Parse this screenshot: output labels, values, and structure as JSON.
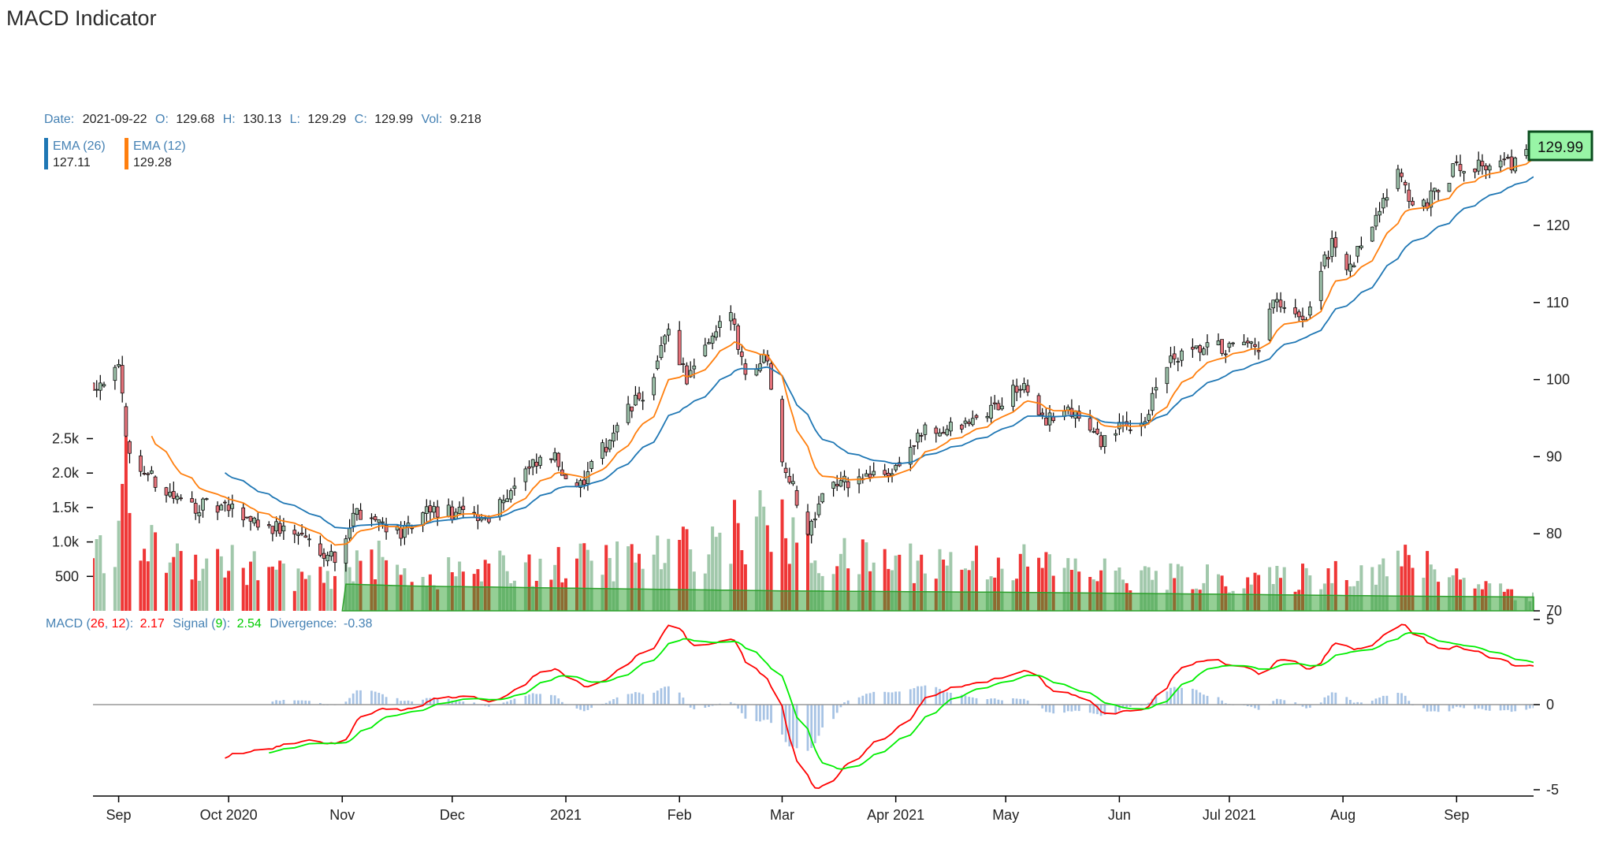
{
  "page_title": "MACD Indicator",
  "colors": {
    "up": "#9bbfa8",
    "down": "#e5727a",
    "ema26": "#1f77b4",
    "ema12": "#ff7f0e",
    "vol_up": "#9cc5a6",
    "vol_down": "#ee2b2b",
    "vol_area": "#2ca02c",
    "macd": "#ff0000",
    "signal": "#00ee00",
    "divergence": "#6c9bd2",
    "label_blue": "#4682b4"
  },
  "tooltip": {
    "date_label": "Date:",
    "date": "2021-09-22",
    "o_label": "O:",
    "open": "129.68",
    "h_label": "H:",
    "high": "130.13",
    "l_label": "L:",
    "low": "129.29",
    "c_label": "C:",
    "close": "129.99",
    "vol_label": "Vol:",
    "volume": "9.218"
  },
  "ema_legend": [
    {
      "name": "EMA (26)",
      "value": "127.11"
    },
    {
      "name": "EMA (12)",
      "value": "129.28"
    }
  ],
  "last_price": "129.99",
  "macd_legend": {
    "macd_label": "MACD (",
    "slow": "26",
    "sep": ", ",
    "fast": "12",
    "macd_end": "):",
    "macd_value": "2.17",
    "signal_label": "Signal (",
    "signal_period": "9",
    "signal_end": "):",
    "signal_value": "2.54",
    "div_label": "Divergence:",
    "div_value": "-0.38"
  },
  "chart_data": {
    "type": "candlestick",
    "date_range": [
      "2020-08-25",
      "2021-09-22"
    ],
    "x_ticks": [
      "Sep",
      "Oct 2020",
      "Nov",
      "Dec",
      "2021",
      "Feb",
      "Mar",
      "Apr 2021",
      "May",
      "Jun",
      "Jul 2021",
      "Aug",
      "Sep"
    ],
    "price_axis": {
      "ticks": [
        "70",
        "80",
        "90",
        "100",
        "110",
        "120"
      ],
      "range": [
        70,
        128
      ]
    },
    "volume_axis": {
      "ticks": [
        "500",
        "1.0k",
        "1.5k",
        "2.0k",
        "2.5k"
      ],
      "range": [
        0,
        5000
      ]
    },
    "macd_axis": {
      "ticks": [
        "5",
        "0",
        "-5"
      ],
      "range": [
        -5,
        5
      ]
    },
    "close_keypoints": [
      [
        "2020-08-25",
        99.5
      ],
      [
        "2020-09-01",
        101
      ],
      [
        "2020-09-04",
        90
      ],
      [
        "2020-09-08",
        88
      ],
      [
        "2020-09-18",
        84
      ],
      [
        "2020-10-02",
        83
      ],
      [
        "2020-10-12",
        81
      ],
      [
        "2020-10-20",
        80
      ],
      [
        "2020-10-30",
        77
      ],
      [
        "2020-11-05",
        83
      ],
      [
        "2020-11-10",
        82
      ],
      [
        "2020-11-18",
        80
      ],
      [
        "2020-11-25",
        83
      ],
      [
        "2020-12-10",
        82
      ],
      [
        "2020-12-21",
        88
      ],
      [
        "2020-12-28",
        90
      ],
      [
        "2021-01-05",
        86
      ],
      [
        "2021-01-15",
        94
      ],
      [
        "2021-01-25",
        100
      ],
      [
        "2021-01-29",
        107
      ],
      [
        "2021-02-03",
        100
      ],
      [
        "2021-02-10",
        105
      ],
      [
        "2021-02-15",
        109
      ],
      [
        "2021-02-19",
        101
      ],
      [
        "2021-02-25",
        103
      ],
      [
        "2021-03-01",
        90
      ],
      [
        "2021-03-04",
        86
      ],
      [
        "2021-03-08",
        80
      ],
      [
        "2021-03-12",
        86
      ],
      [
        "2021-03-22",
        87
      ],
      [
        "2021-03-31",
        88
      ],
      [
        "2021-04-08",
        93
      ],
      [
        "2021-04-20",
        94
      ],
      [
        "2021-04-30",
        97
      ],
      [
        "2021-05-05",
        99
      ],
      [
        "2021-05-12",
        95
      ],
      [
        "2021-05-20",
        96
      ],
      [
        "2021-05-26",
        92
      ],
      [
        "2021-06-03",
        94
      ],
      [
        "2021-06-08",
        95
      ],
      [
        "2021-06-14",
        102
      ],
      [
        "2021-06-25",
        104
      ],
      [
        "2021-07-02",
        104
      ],
      [
        "2021-07-09",
        104
      ],
      [
        "2021-07-13",
        110
      ],
      [
        "2021-07-21",
        107
      ],
      [
        "2021-07-29",
        118
      ],
      [
        "2021-08-03",
        114
      ],
      [
        "2021-08-12",
        124
      ],
      [
        "2021-08-17",
        127
      ],
      [
        "2021-08-20",
        122
      ],
      [
        "2021-08-27",
        124
      ],
      [
        "2021-09-01",
        128
      ],
      [
        "2021-09-10",
        128
      ],
      [
        "2021-09-16",
        128
      ],
      [
        "2021-09-22",
        129.99
      ]
    ],
    "volume_keypoints": [
      [
        "2020-08-25",
        700
      ],
      [
        "2020-09-01",
        950
      ],
      [
        "2020-09-03",
        1800
      ],
      [
        "2020-09-08",
        900
      ],
      [
        "2020-10-01",
        700
      ],
      [
        "2020-10-30",
        400
      ],
      [
        "2020-11-05",
        850
      ],
      [
        "2020-11-20",
        500
      ],
      [
        "2021-01-29",
        800
      ],
      [
        "2021-02-25",
        1300
      ],
      [
        "2021-03-10",
        750
      ],
      [
        "2021-05-05",
        700
      ],
      [
        "2021-06-04",
        500
      ],
      [
        "2021-07-15",
        450
      ],
      [
        "2021-08-20",
        700
      ],
      [
        "2021-09-22",
        200
      ]
    ],
    "volume_ma_keypoints": [
      [
        "2020-11-01",
        390
      ],
      [
        "2020-11-20",
        360
      ],
      [
        "2021-01-15",
        320
      ],
      [
        "2021-03-01",
        290
      ],
      [
        "2021-05-01",
        270
      ],
      [
        "2021-07-01",
        240
      ],
      [
        "2021-08-15",
        215
      ],
      [
        "2021-09-22",
        200
      ]
    ]
  }
}
